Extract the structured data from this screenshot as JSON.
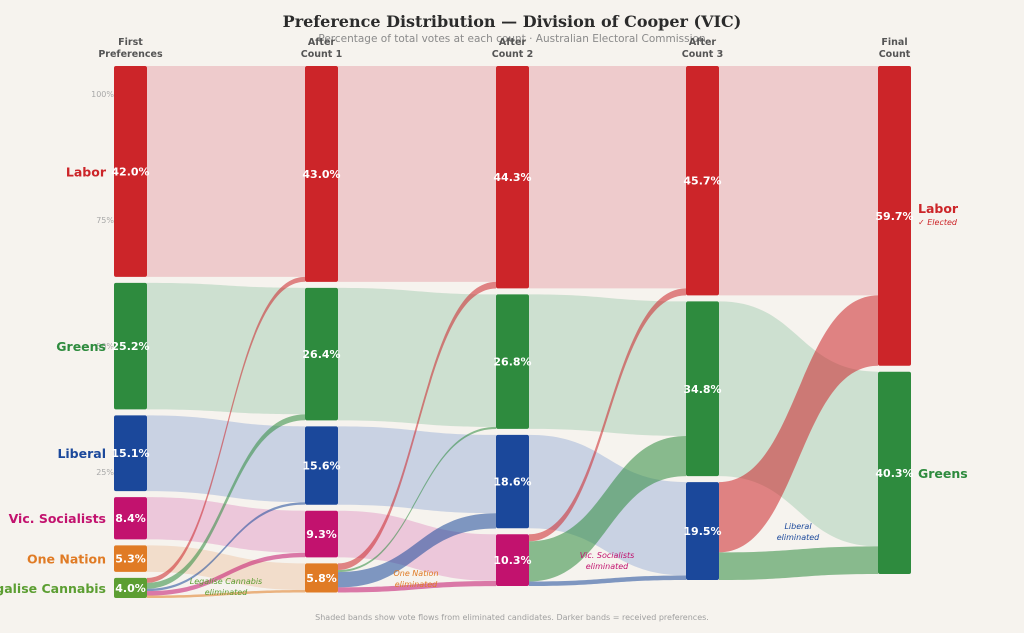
{
  "chart_data": {
    "type": "sankey",
    "title": "Preference Distribution — Division of Cooper (VIC)",
    "subtitle": "Percentage of total votes at each count · Australian Electoral Commission",
    "footnote": "Shaded bands show vote flows from eliminated candidates. Darker bands = received preferences.",
    "stages": [
      {
        "line1": "First",
        "line2": "Preferences"
      },
      {
        "line1": "After",
        "line2": "Count 1"
      },
      {
        "line1": "After",
        "line2": "Count 2"
      },
      {
        "line1": "After",
        "line2": "Count 3"
      },
      {
        "line1": "Final",
        "line2": "Count"
      }
    ],
    "y_ticks": [
      "100%",
      "75%",
      "50%",
      "25%"
    ],
    "parties": [
      {
        "name": "Labor",
        "color": "#cc2529"
      },
      {
        "name": "Greens",
        "color": "#2e8b3e"
      },
      {
        "name": "Liberal",
        "color": "#1b489b"
      },
      {
        "name": "Vic. Socialists",
        "color": "#c2126e"
      },
      {
        "name": "One Nation",
        "color": "#e07b25"
      },
      {
        "name": "Legalise Cannabis",
        "color": "#5c9e32"
      }
    ],
    "series": [
      {
        "name": "Labor",
        "values": [
          42.0,
          43.0,
          44.3,
          45.7,
          59.7
        ]
      },
      {
        "name": "Greens",
        "values": [
          25.2,
          26.4,
          26.8,
          34.8,
          40.3
        ]
      },
      {
        "name": "Liberal",
        "values": [
          15.1,
          15.6,
          18.6,
          19.5,
          null
        ]
      },
      {
        "name": "Vic. Socialists",
        "values": [
          8.4,
          9.3,
          10.3,
          null,
          null
        ]
      },
      {
        "name": "One Nation",
        "values": [
          5.3,
          5.8,
          null,
          null,
          null
        ]
      },
      {
        "name": "Legalise Cannabis",
        "values": [
          4.0,
          null,
          null,
          null,
          null
        ]
      }
    ],
    "value_labels": [
      [
        "42.0%",
        "25.2%",
        "15.1%",
        "8.4%",
        "5.3%",
        "4.0%"
      ],
      [
        "43.0%",
        "26.4%",
        "15.6%",
        "9.3%",
        "5.8%"
      ],
      [
        "44.3%",
        "26.8%",
        "18.6%",
        "10.3%"
      ],
      [
        "45.7%",
        "34.8%",
        "19.5%"
      ],
      [
        "59.7%",
        "40.3%"
      ]
    ],
    "elected_text": "✓ Elected",
    "annotations": [
      {
        "line1": "Legalise Cannabis",
        "line2": "eliminated"
      },
      {
        "line1": "One Nation",
        "line2": "eliminated"
      },
      {
        "line1": "Vic. Socialists",
        "line2": "eliminated"
      },
      {
        "line1": "Liberal",
        "line2": "eliminated"
      }
    ]
  }
}
